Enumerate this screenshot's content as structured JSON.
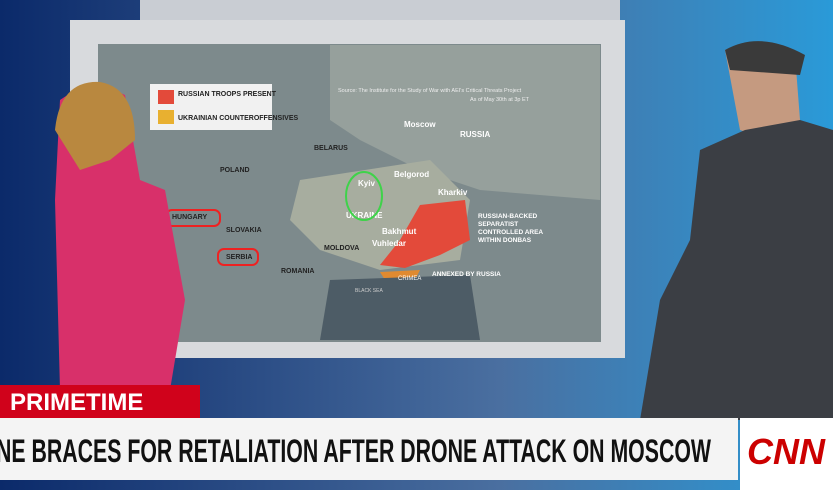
{
  "map": {
    "legend": [
      "RUSSIAN TROOPS PRESENT",
      "UKRAINIAN COUNTEROFFENSIVES"
    ],
    "source": [
      "Source: The Institute for the Study of War with AEI's Critical Threats Project",
      "As of May 30th at 3p ET"
    ],
    "labels": [
      "Moscow",
      "RUSSIA",
      "BELARUS",
      "POLAND",
      "Belgorod",
      "Kyiv",
      "Kharkiv",
      "UKRAINE",
      "HUNGARY",
      "SLOVAKIA",
      "SERBIA",
      "ROMANIA",
      "MOLDOVA",
      "Bakhmut",
      "Vuhledar",
      "CRIMEA",
      "BLACK SEA"
    ],
    "donbas_note": [
      "RUSSIAN-BACKED",
      "SEPARATIST",
      "CONTROLLED AREA",
      "WITHIN DONBAS"
    ],
    "annexed_note": "ANNEXED BY RUSSIA"
  },
  "banner": {
    "tag": "PRIMETIME",
    "headline": "NE BRACES FOR RETALIATION AFTER DRONE ATTACK ON MOSCOW",
    "logo": "CNN"
  }
}
